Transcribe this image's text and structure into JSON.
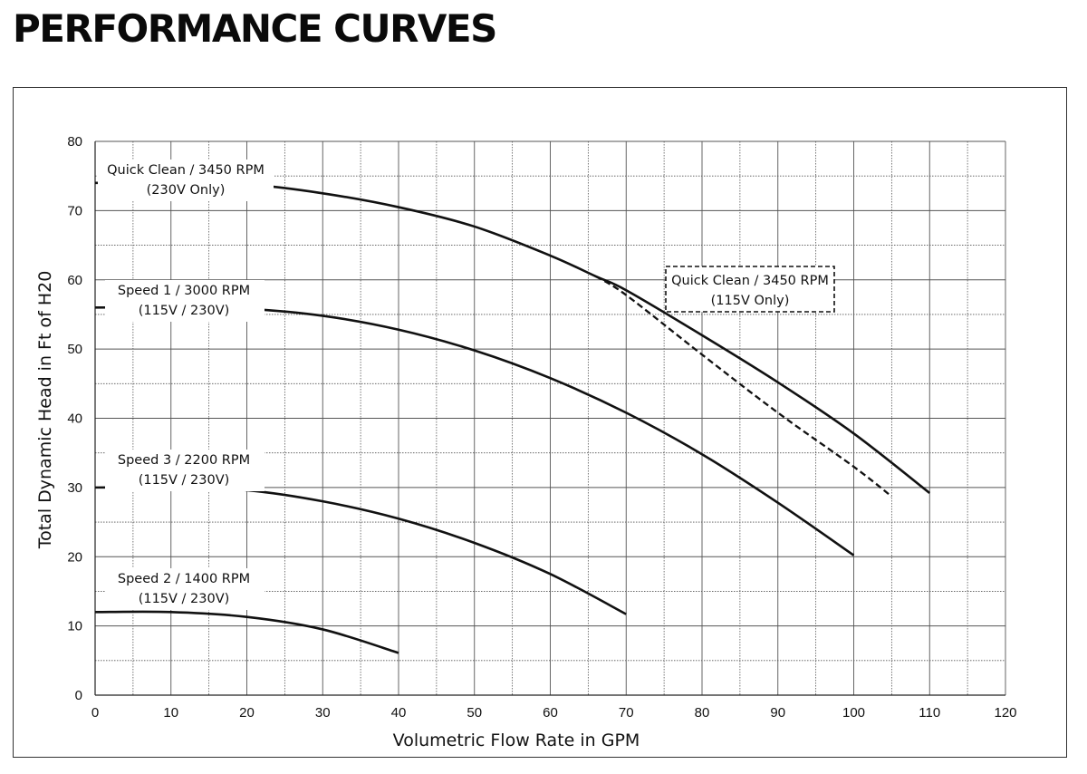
{
  "page": {
    "title": "PERFORMANCE CURVES"
  },
  "chart_data": {
    "type": "line",
    "title": "PERFORMANCE CURVES",
    "xlabel": "Volumetric Flow Rate in GPM",
    "ylabel": "Total Dynamic Head in Ft of H20",
    "xlim": [
      0,
      120
    ],
    "ylim": [
      0,
      80
    ],
    "x_ticks": [
      0,
      10,
      20,
      30,
      40,
      50,
      60,
      70,
      80,
      90,
      100,
      110,
      120
    ],
    "y_ticks": [
      0,
      10,
      20,
      30,
      40,
      50,
      60,
      70,
      80
    ],
    "grid": true,
    "series": [
      {
        "name": "Quick Clean / 3450 RPM",
        "note": "(230V Only)",
        "style": "solid",
        "x": [
          0,
          10,
          20,
          30,
          40,
          50,
          60,
          66,
          70,
          80,
          90,
          100,
          110
        ],
        "y": [
          74,
          74,
          73.8,
          72.5,
          70.5,
          67.7,
          63.5,
          60.5,
          58.5,
          52,
          45.2,
          37.8,
          29.2
        ]
      },
      {
        "name": "Quick Clean / 3450 RPM",
        "note": "(115V Only)",
        "style": "dashed",
        "x": [
          66,
          70,
          80,
          90,
          100,
          105
        ],
        "y": [
          60.5,
          57.8,
          49.2,
          40.8,
          33,
          28.7
        ]
      },
      {
        "name": "Speed 1 / 3000 RPM",
        "note": "(115V / 230V)",
        "style": "solid",
        "x": [
          0,
          10,
          20,
          30,
          40,
          50,
          60,
          70,
          80,
          90,
          100
        ],
        "y": [
          56,
          56,
          55.8,
          54.8,
          52.8,
          49.8,
          45.8,
          40.8,
          34.8,
          27.8,
          20.2
        ]
      },
      {
        "name": "Speed 3 / 2200 RPM",
        "note": "(115V / 230V)",
        "style": "solid",
        "x": [
          0,
          10,
          20,
          30,
          40,
          50,
          60,
          70
        ],
        "y": [
          30,
          30,
          29.6,
          28,
          25.5,
          22,
          17.5,
          11.7
        ]
      },
      {
        "name": "Speed 2 / 1400 RPM",
        "note": "(115V / 230V)",
        "style": "solid",
        "x": [
          0,
          10,
          20,
          30,
          40
        ],
        "y": [
          12,
          12,
          11.3,
          9.5,
          6.1
        ]
      }
    ]
  }
}
